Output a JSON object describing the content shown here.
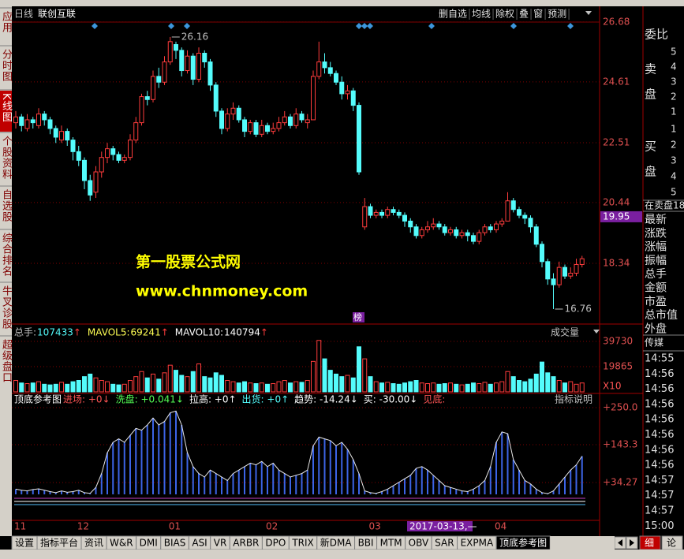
{
  "chart_data": [
    {
      "type": "candlestick",
      "period": "日线",
      "title": "联创互联",
      "open": [
        23.2,
        23.4,
        23.0,
        23.3,
        23.1,
        23.5,
        23.3,
        23.0,
        22.6,
        22.9,
        22.6,
        22.2,
        21.9,
        21.2,
        20.8,
        21.5,
        22.0,
        22.3,
        22.1,
        21.9,
        22.0,
        22.6,
        23.2,
        24.1,
        24.0,
        24.8,
        24.6,
        25.3,
        25.9,
        25.7,
        25.0,
        25.5,
        24.7,
        25.6,
        25.3,
        24.5,
        23.6,
        23.0,
        23.5,
        23.7,
        23.3,
        22.9,
        23.2,
        22.8,
        23.1,
        22.9,
        23.0,
        23.2,
        23.4,
        23.1,
        23.5,
        23.2,
        23.3,
        24.8,
        25.3,
        25.1,
        24.9,
        24.6,
        24.2,
        24.3,
        23.8,
        19.6,
        20.3,
        20.0,
        20.1,
        20.0,
        20.2,
        20.1,
        20.0,
        19.8,
        19.6,
        19.3,
        19.5,
        19.6,
        19.7,
        19.6,
        19.4,
        19.5,
        19.3,
        19.4,
        19.3,
        19.1,
        19.4,
        19.6,
        19.5,
        19.7,
        19.8,
        20.5,
        20.2,
        20.0,
        19.9,
        19.6,
        19.0,
        18.4,
        17.8,
        17.6,
        18.2,
        17.9,
        18.0,
        18.3
      ],
      "high": [
        23.6,
        23.5,
        23.5,
        23.4,
        23.7,
        23.6,
        23.4,
        23.1,
        23.1,
        23.0,
        22.7,
        22.4,
        22.0,
        21.4,
        21.7,
        22.2,
        22.5,
        22.4,
        22.2,
        22.1,
        22.8,
        23.4,
        24.2,
        24.3,
        25.0,
        25.1,
        25.5,
        26.16,
        26.0,
        25.8,
        25.7,
        25.6,
        25.8,
        25.7,
        25.4,
        24.6,
        23.7,
        23.7,
        23.9,
        23.8,
        23.4,
        23.3,
        23.3,
        23.3,
        23.2,
        23.2,
        23.4,
        23.6,
        23.5,
        23.7,
        23.6,
        23.5,
        25.0,
        26.0,
        25.6,
        25.3,
        25.0,
        24.8,
        24.5,
        24.4,
        23.9,
        20.6,
        20.4,
        20.2,
        20.2,
        20.3,
        20.3,
        20.2,
        20.1,
        19.9,
        19.7,
        19.6,
        19.8,
        19.9,
        19.8,
        19.7,
        19.6,
        19.6,
        19.5,
        19.5,
        19.4,
        19.5,
        19.7,
        19.7,
        19.8,
        19.9,
        20.8,
        20.6,
        20.3,
        20.1,
        20.0,
        19.7,
        19.1,
        18.5,
        18.0,
        18.4,
        18.3,
        18.2,
        18.5,
        18.6
      ],
      "low": [
        23.0,
        22.9,
        22.9,
        23.0,
        23.0,
        23.1,
        22.8,
        22.5,
        22.5,
        22.4,
        21.9,
        21.7,
        20.9,
        20.5,
        20.6,
        21.3,
        21.8,
        21.9,
        21.8,
        21.8,
        21.9,
        22.5,
        23.1,
        23.8,
        23.9,
        24.4,
        24.5,
        25.2,
        25.4,
        24.8,
        24.9,
        24.5,
        24.6,
        25.1,
        24.3,
        23.4,
        22.8,
        22.9,
        23.3,
        23.2,
        22.7,
        22.8,
        22.7,
        22.7,
        22.8,
        22.8,
        22.9,
        23.1,
        23.0,
        23.0,
        23.2,
        23.0,
        23.3,
        24.7,
        24.9,
        24.8,
        24.5,
        24.0,
        24.0,
        23.6,
        21.4,
        19.5,
        19.9,
        19.9,
        19.9,
        19.9,
        20.0,
        19.9,
        19.6,
        19.4,
        19.2,
        19.2,
        19.4,
        19.5,
        19.5,
        19.3,
        19.3,
        19.2,
        19.2,
        19.1,
        19.0,
        19.0,
        19.3,
        19.4,
        19.4,
        19.6,
        19.8,
        20.1,
        19.9,
        19.7,
        19.4,
        18.9,
        18.2,
        17.6,
        16.76,
        17.5,
        17.8,
        17.8,
        17.9,
        18.2
      ],
      "close": [
        23.4,
        23.1,
        23.3,
        23.2,
        23.5,
        23.3,
        23.0,
        22.7,
        22.9,
        22.6,
        22.2,
        21.9,
        21.2,
        20.7,
        21.5,
        22.0,
        22.3,
        22.1,
        21.9,
        22.0,
        22.6,
        23.2,
        24.1,
        24.0,
        24.8,
        24.6,
        25.3,
        26.0,
        25.7,
        25.0,
        25.5,
        24.7,
        25.6,
        25.3,
        24.5,
        23.6,
        23.0,
        23.5,
        23.7,
        23.3,
        22.9,
        23.2,
        22.8,
        23.1,
        22.9,
        23.0,
        23.2,
        23.4,
        23.1,
        23.5,
        23.3,
        23.3,
        24.8,
        25.3,
        25.1,
        24.9,
        24.6,
        24.2,
        24.3,
        23.8,
        21.5,
        20.3,
        20.0,
        20.1,
        20.0,
        20.2,
        20.1,
        20.0,
        19.8,
        19.6,
        19.3,
        19.5,
        19.6,
        19.7,
        19.6,
        19.4,
        19.5,
        19.3,
        19.4,
        19.3,
        19.1,
        19.4,
        19.6,
        19.5,
        19.7,
        19.8,
        20.5,
        20.2,
        20.0,
        19.9,
        19.6,
        19.0,
        18.4,
        17.8,
        17.6,
        18.2,
        17.9,
        18.0,
        18.3,
        18.5
      ],
      "ylim": [
        16.27,
        26.84
      ],
      "yticks": [
        18.34,
        20.44,
        22.51,
        24.61,
        26.68
      ],
      "grid": true,
      "up_color": "#ff3c3c",
      "down_color": "#54fcfc",
      "cursor_price": 19.95,
      "marker": "榜"
    },
    {
      "type": "bar",
      "title": "成交量",
      "legend": [
        {
          "name": "总手:",
          "value": 107433,
          "arrow": "↑",
          "color": "#54fcfc"
        },
        {
          "name": "MAVOL5:",
          "value": 69241,
          "arrow": "↑",
          "color": "#ffff54"
        },
        {
          "name": "MAVOL10:",
          "value": 140794,
          "arrow": "↑",
          "color": "#ffffff"
        }
      ],
      "values": [
        9000,
        7000,
        6500,
        7000,
        8000,
        6000,
        5500,
        6000,
        7500,
        6000,
        8000,
        9000,
        12000,
        14000,
        11000,
        9000,
        8000,
        6000,
        5500,
        6000,
        9000,
        12000,
        16000,
        11000,
        14000,
        10000,
        15000,
        21000,
        17000,
        13000,
        12000,
        16000,
        22000,
        12000,
        11000,
        15000,
        13000,
        9000,
        8000,
        7000,
        8000,
        7000,
        6500,
        7000,
        6000,
        6500,
        8000,
        9000,
        7000,
        8000,
        7500,
        9000,
        24000,
        40500,
        26000,
        17000,
        14000,
        12000,
        13000,
        11000,
        35500,
        26000,
        12000,
        8000,
        7000,
        7500,
        6500,
        6000,
        7000,
        8000,
        9000,
        7000,
        6500,
        7000,
        6000,
        6500,
        7000,
        6000,
        5500,
        6000,
        7000,
        6500,
        7500,
        6000,
        7000,
        8000,
        16000,
        12000,
        9000,
        8000,
        10000,
        14000,
        23500,
        15000,
        12000,
        9000,
        7000,
        8000,
        6000,
        7000
      ],
      "ylim": [
        0,
        49040
      ],
      "yticks": [
        19865,
        39730
      ],
      "unit_label": "X10",
      "grid": true
    },
    {
      "type": "bar",
      "title": "顶底参考图",
      "items": [
        {
          "text": "进场: +0↓",
          "color": "#ff5454"
        },
        {
          "text": "洗盘: +0.041↓",
          "color": "#54ff54"
        },
        {
          "text": "拉高: +0↑",
          "color": "#ffffff"
        },
        {
          "text": "出货: +0↑",
          "color": "#54fcfc"
        },
        {
          "text": "趋势: -14.24↓",
          "color": "#ffffff"
        },
        {
          "text": "买: -30.00↓",
          "color": "#ffffff"
        },
        {
          "text": "见底:",
          "color": "#ff5454"
        }
      ],
      "help_button": "指标说明",
      "values": [
        15,
        12,
        10,
        14,
        16,
        12,
        8,
        5,
        10,
        6,
        8,
        12,
        5,
        3,
        20,
        60,
        120,
        150,
        160,
        150,
        170,
        190,
        185,
        200,
        220,
        200,
        210,
        235,
        240,
        200,
        120,
        80,
        60,
        50,
        70,
        60,
        50,
        40,
        60,
        70,
        80,
        90,
        85,
        95,
        80,
        90,
        70,
        60,
        50,
        55,
        60,
        70,
        140,
        165,
        160,
        155,
        140,
        150,
        130,
        100,
        60,
        10,
        5,
        3,
        8,
        15,
        25,
        35,
        45,
        55,
        75,
        80,
        70,
        55,
        40,
        25,
        20,
        15,
        10,
        8,
        15,
        25,
        40,
        80,
        150,
        180,
        175,
        100,
        70,
        40,
        30,
        15,
        5,
        2,
        10,
        30,
        50,
        70,
        85,
        110
      ],
      "color": "#3c64e6",
      "categories": [
        "11",
        null,
        null,
        null,
        null,
        null,
        null,
        null,
        null,
        null,
        null,
        "12",
        null,
        null,
        null,
        null,
        null,
        null,
        null,
        null,
        null,
        null,
        null,
        null,
        null,
        null,
        null,
        "01",
        null,
        null,
        null,
        null,
        null,
        null,
        null,
        null,
        null,
        null,
        null,
        null,
        null,
        null,
        null,
        null,
        "02",
        null,
        null,
        null,
        null,
        null,
        null,
        null,
        null,
        null,
        null,
        null,
        null,
        null,
        null,
        null,
        null,
        null,
        "03",
        null,
        null,
        null,
        null,
        null,
        null,
        null,
        null,
        null,
        null,
        null,
        null,
        null,
        null,
        null,
        null,
        null,
        null,
        null,
        null,
        null,
        "04",
        null,
        null,
        null,
        null,
        null,
        null,
        null,
        null,
        null,
        null,
        null,
        null,
        null,
        null,
        null
      ],
      "ylim": [
        -74.9,
        284
      ],
      "yticks": [
        {
          "value": 250,
          "label": "+250.0"
        },
        {
          "value": 143.3,
          "label": "+143.3"
        },
        {
          "value": 34.27,
          "label": "+34.27"
        }
      ],
      "grid": true,
      "cursor_date": "2017-03-13,—"
    }
  ],
  "ui": {
    "top_buttons": [
      "删自选",
      "均线",
      "除权",
      "叠",
      "窗",
      "预测"
    ],
    "left_toolbar": [
      "应用",
      "分时图",
      "K线图",
      "个股资料",
      "自选股",
      "综合排名",
      "牛叉诊股",
      "超级盘口"
    ],
    "watermark": [
      "第一股票公式网",
      "www.chnmoney.com"
    ],
    "tabs": [
      "设置",
      "指标平台",
      "资讯",
      "W&R",
      "DMI",
      "BIAS",
      "ASI",
      "VR",
      "ARBR",
      "DPO",
      "TRIX",
      "新DMA",
      "BBI",
      "MTM",
      "OBV",
      "SAR",
      "EXPMA",
      "顶底参考图"
    ],
    "tab_extra": [
      "细",
      "论"
    ],
    "right_panel": {
      "wei_bi": "委比",
      "sell_label": [
        "卖",
        "盘"
      ],
      "sell_levels": [
        "5",
        "4",
        "3",
        "2",
        "1"
      ],
      "buy_label": [
        "买",
        "盘"
      ],
      "buy_levels": [
        "1",
        "2",
        "3",
        "4",
        "5"
      ],
      "in_sell": "在卖盘18.",
      "fields": [
        "最新",
        "涨跌",
        "涨幅",
        "振幅",
        "总手",
        "金额",
        "市盈",
        "总市值",
        "外盘"
      ],
      "sector": "传媒",
      "times": [
        "14:55",
        "14:56",
        "14:56",
        "14:56",
        "14:56",
        "14:56",
        "14:56",
        "14:56",
        "14:57",
        "14:57",
        "14:57",
        "15:00"
      ]
    }
  }
}
